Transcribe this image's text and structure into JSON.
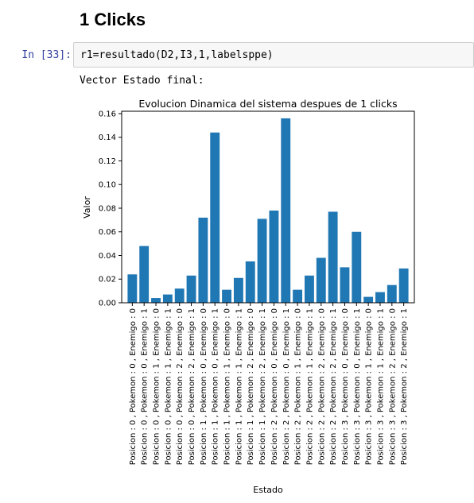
{
  "heading": "1 Clicks",
  "cell": {
    "prompt": "In [33]:",
    "code": "r1=resultado(D2,I3,1,labelsppe)"
  },
  "output": {
    "text": "Vector Estado final:"
  },
  "chart_data": {
    "type": "bar",
    "title": "Evolucion Dinamica del sistema despues de 1 clicks",
    "xlabel": "Estado",
    "ylabel": "Valor",
    "ylim": [
      0,
      0.162
    ],
    "yticks": [
      "0.00",
      "0.02",
      "0.04",
      "0.06",
      "0.08",
      "0.10",
      "0.12",
      "0.14",
      "0.16"
    ],
    "grid": false,
    "color": "#1f77b4",
    "categories": [
      "Posicion : 0 , Pokemon : 0 , Enemigo : 0",
      "Posicion : 0 , Pokemon : 0 , Enemigo : 1",
      "Posicion : 0 , Pokemon : 1 , Enemigo : 0",
      "Posicion : 0 , Pokemon : 1 , Enemigo : 1",
      "Posicion : 0 , Pokemon : 2 , Enemigo : 0",
      "Posicion : 0 , Pokemon : 2 , Enemigo : 1",
      "Posicion : 1 , Pokemon : 0 , Enemigo : 0",
      "Posicion : 1 , Pokemon : 0 , Enemigo : 1",
      "Posicion : 1 , Pokemon : 1 , Enemigo : 0",
      "Posicion : 1 , Pokemon : 1 , Enemigo : 1",
      "Posicion : 1 , Pokemon : 2 , Enemigo : 0",
      "Posicion : 1 , Pokemon : 2 , Enemigo : 1",
      "Posicion : 2 , Pokemon : 0 , Enemigo : 0",
      "Posicion : 2 , Pokemon : 0 , Enemigo : 1",
      "Posicion : 2 , Pokemon : 1 , Enemigo : 0",
      "Posicion : 2 , Pokemon : 1 , Enemigo : 1",
      "Posicion : 2 , Pokemon : 2 , Enemigo : 0",
      "Posicion : 2 , Pokemon : 2 , Enemigo : 1",
      "Posicion : 3 , Pokemon : 0 , Enemigo : 0",
      "Posicion : 3 , Pokemon : 0 , Enemigo : 1",
      "Posicion : 3 , Pokemon : 1 , Enemigo : 0",
      "Posicion : 3 , Pokemon : 1 , Enemigo : 1",
      "Posicion : 3 , Pokemon : 2 , Enemigo : 0",
      "Posicion : 3 , Pokemon : 2 , Enemigo : 1"
    ],
    "values": [
      0.024,
      0.048,
      0.004,
      0.007,
      0.012,
      0.023,
      0.072,
      0.144,
      0.011,
      0.021,
      0.035,
      0.071,
      0.078,
      0.156,
      0.011,
      0.023,
      0.038,
      0.077,
      0.03,
      0.06,
      0.005,
      0.009,
      0.015,
      0.029
    ]
  }
}
